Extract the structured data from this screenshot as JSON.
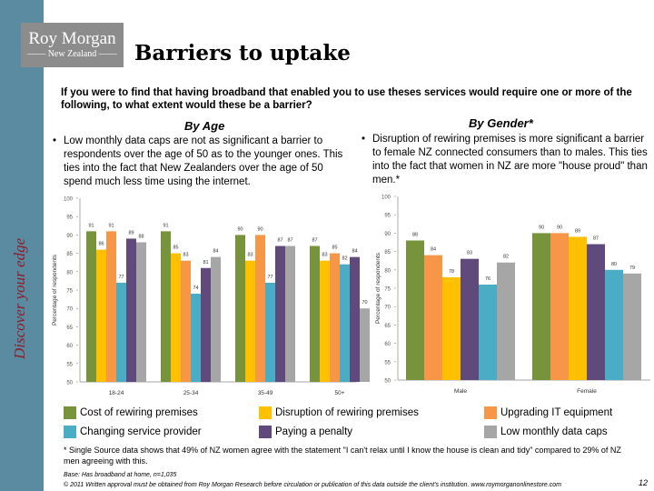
{
  "sidebar": {
    "tagline": "Discover your edge",
    "color": "#5b8ba1"
  },
  "logo": {
    "line1": "Roy Morgan",
    "line2": "New Zealand"
  },
  "title": "Barriers to uptake",
  "question": "If you were to find that having broadband that enabled you to use theses services would require one or more of the following, to what extent would these be a barrier?",
  "age_section": {
    "heading": "By Age",
    "bullet": "Low monthly data caps are not as significant a barrier to respondents over the age of 50 as to the younger ones. This ties into the fact that New Zealanders over the age of 50 spend much less time using the internet."
  },
  "gender_section": {
    "heading": "By Gender*",
    "bullet": "Disruption of rewiring premises is more significant a barrier to female NZ connected consumers than to males. This ties into the fact that women in NZ are more \"house proud\" than men.*"
  },
  "legend": [
    {
      "label": "Cost of rewiring premises",
      "color": "#77933c"
    },
    {
      "label": "Disruption of rewiring premises",
      "color": "#ffc000"
    },
    {
      "label": "Upgrading IT equipment",
      "color": "#f79646"
    },
    {
      "label": "Changing service provider",
      "color": "#4bacc6"
    },
    {
      "label": "Paying a penalty",
      "color": "#604a7b"
    },
    {
      "label": "Low monthly data caps",
      "color": "#a6a6a6"
    }
  ],
  "chart_data": [
    {
      "type": "bar",
      "title": "By Age",
      "ylabel": "Percentage of respondents",
      "ylim": [
        50,
        100
      ],
      "yticks": [
        50,
        55,
        60,
        65,
        70,
        75,
        80,
        85,
        90,
        95,
        100
      ],
      "grid": false,
      "legend": "bottom",
      "categories": [
        "18-24",
        "25-34",
        "35-49",
        "50+"
      ],
      "series": [
        {
          "name": "Cost of rewiring premises",
          "color": "#77933c",
          "values": [
            91,
            91,
            90,
            87
          ]
        },
        {
          "name": "Disruption of rewiring premises",
          "color": "#ffc000",
          "values": [
            86,
            85,
            83,
            83
          ]
        },
        {
          "name": "Upgrading IT equipment",
          "color": "#f79646",
          "values": [
            91,
            83,
            90,
            85
          ]
        },
        {
          "name": "Changing service provider",
          "color": "#4bacc6",
          "values": [
            77,
            74,
            77,
            82
          ]
        },
        {
          "name": "Paying a penalty",
          "color": "#604a7b",
          "values": [
            89,
            81,
            87,
            84
          ]
        },
        {
          "name": "Low monthly data caps",
          "color": "#a6a6a6",
          "values": [
            88,
            84,
            87,
            70
          ]
        }
      ]
    },
    {
      "type": "bar",
      "title": "By Gender*",
      "ylabel": "Percentage of respondents",
      "ylim": [
        50,
        100
      ],
      "yticks": [
        50,
        55,
        60,
        65,
        70,
        75,
        80,
        85,
        90,
        95,
        100
      ],
      "grid": false,
      "legend": "bottom",
      "categories": [
        "Male",
        "Female"
      ],
      "series": [
        {
          "name": "Cost of rewiring premises",
          "color": "#77933c",
          "values": [
            88,
            90
          ]
        },
        {
          "name": "Upgrading IT equipment",
          "color": "#f79646",
          "values": [
            84,
            90
          ]
        },
        {
          "name": "Disruption of rewiring premises",
          "color": "#ffc000",
          "values": [
            78,
            89
          ]
        },
        {
          "name": "Paying a penalty",
          "color": "#604a7b",
          "values": [
            83,
            87
          ]
        },
        {
          "name": "Changing service provider",
          "color": "#4bacc6",
          "values": [
            76,
            80
          ]
        },
        {
          "name": "Low monthly data caps",
          "color": "#a6a6a6",
          "values": [
            82,
            79
          ]
        }
      ]
    }
  ],
  "footnote": "* Single Source data shows that 49% of NZ women agree with the statement \"I can't relax until I know the house is clean and tidy\" compared to 29% of NZ men agreeing with this.",
  "base": "Base: Has broadband at home, n=1,035",
  "copyright": "© 2011 Written approval must be obtained from Roy Morgan Research before circulation or publication of this data outside the client's institution. www.roymorganonlinestore.com",
  "page_number": "12"
}
